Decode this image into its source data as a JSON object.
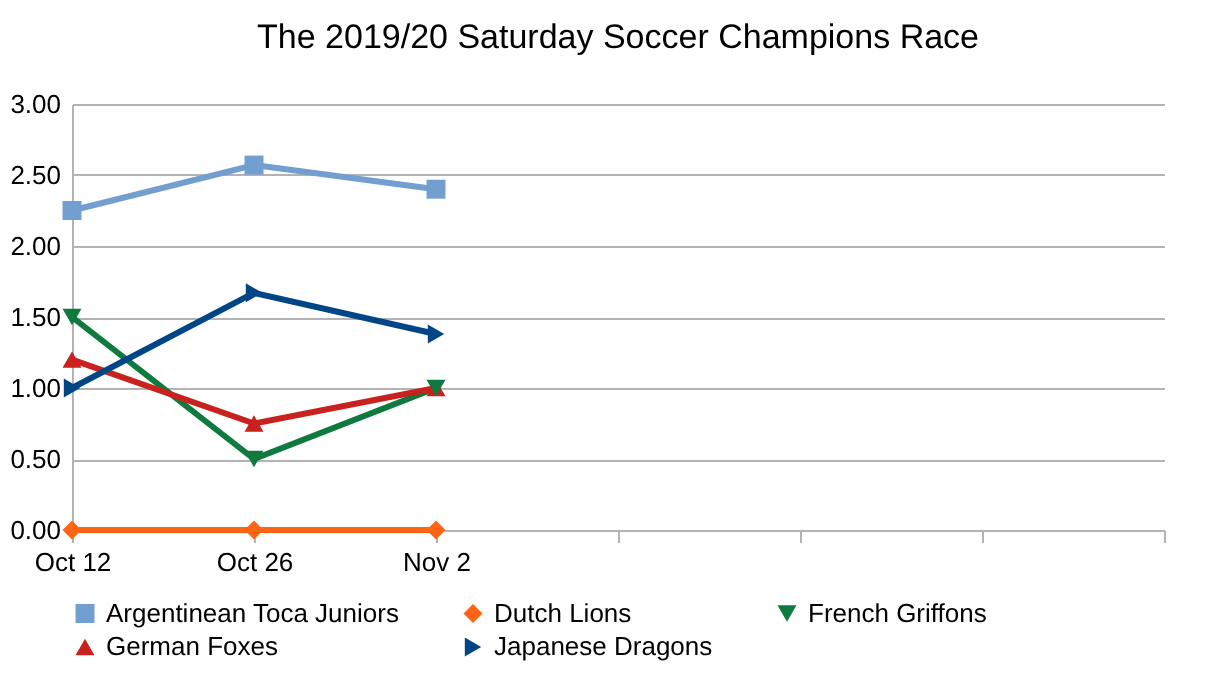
{
  "chart_data": {
    "type": "line",
    "title": "The 2019/20 Saturday Soccer Champions Race",
    "categories": [
      "Oct 12",
      "Oct 26",
      "Nov 2",
      null,
      null,
      null,
      null
    ],
    "series": [
      {
        "name": "Argentinean Toca Juniors",
        "color": "#729fcf",
        "marker": "square",
        "values": [
          2.25,
          2.57,
          2.4,
          null,
          null,
          null,
          null
        ]
      },
      {
        "name": "Dutch Lions",
        "color": "#ff6314",
        "marker": "diamond",
        "values": [
          0,
          0,
          0,
          null,
          null,
          null,
          null
        ]
      },
      {
        "name": "French Griffons",
        "color": "#0f7a3d",
        "marker": "triangle-down",
        "values": [
          1.5,
          0.5,
          1.0,
          null,
          null,
          null,
          null
        ]
      },
      {
        "name": "German Foxes",
        "color": "#c9211e",
        "marker": "triangle-up",
        "values": [
          1.2,
          0.75,
          1.0,
          null,
          null,
          null,
          null
        ]
      },
      {
        "name": "Japanese Dragons",
        "color": "#004586",
        "marker": "triangle-right",
        "values": [
          1.0,
          1.67,
          1.38,
          null,
          null,
          null,
          null
        ]
      }
    ],
    "ylim": [
      0,
      3
    ],
    "yticks": [
      {
        "value": 0,
        "label": "0.00"
      },
      {
        "value": 0.5,
        "label": "0.50"
      },
      {
        "value": 1,
        "label": "1.00"
      },
      {
        "value": 1.5,
        "label": "1.50"
      },
      {
        "value": 2,
        "label": "2.00"
      },
      {
        "value": 2.5,
        "label": "2.50"
      },
      {
        "value": 3,
        "label": "3.00"
      }
    ],
    "grid": "y",
    "legend": "bottom"
  }
}
